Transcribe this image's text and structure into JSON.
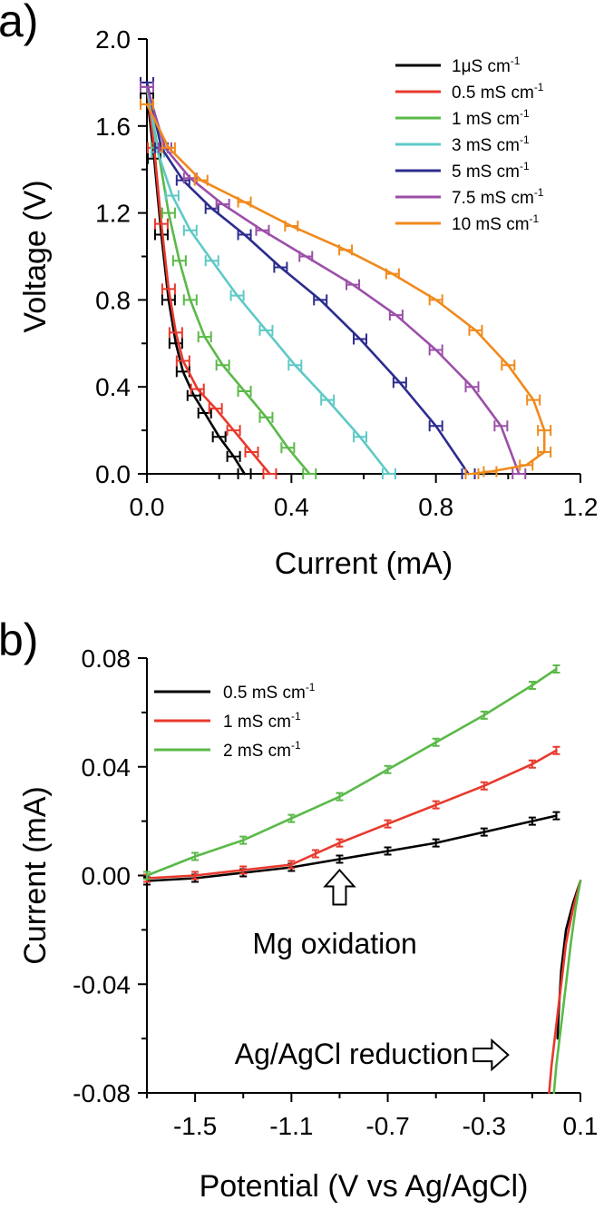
{
  "chart_data": [
    {
      "panel": "a)",
      "type": "line",
      "xlabel": "Current (mA)",
      "ylabel": "Voltage (V)",
      "xlim": [
        0.0,
        1.2
      ],
      "ylim": [
        0.0,
        2.0
      ],
      "xticks": [
        "0.0",
        "0.4",
        "0.8",
        "1.2"
      ],
      "xtick_values": [
        0.0,
        0.4,
        0.8,
        1.2
      ],
      "yticks": [
        "0.0",
        "0.4",
        "0.8",
        "1.2",
        "1.6",
        "2.0"
      ],
      "ytick_values": [
        0.0,
        0.4,
        0.8,
        1.2,
        1.6,
        2.0
      ],
      "legend_position": "top-right",
      "series": [
        {
          "name": "1μS cm",
          "sup": "-1",
          "color": "#000000",
          "x": [
            0.0,
            0.02,
            0.04,
            0.06,
            0.08,
            0.1,
            0.13,
            0.16,
            0.2,
            0.24,
            0.27
          ],
          "y": [
            1.75,
            1.45,
            1.1,
            0.8,
            0.6,
            0.47,
            0.36,
            0.28,
            0.17,
            0.08,
            0.0
          ]
        },
        {
          "name": "0.5 mS cm",
          "sup": "-1",
          "color": "#e8392c",
          "x": [
            0.0,
            0.02,
            0.04,
            0.06,
            0.08,
            0.1,
            0.14,
            0.19,
            0.24,
            0.29,
            0.34
          ],
          "y": [
            1.78,
            1.5,
            1.15,
            0.85,
            0.65,
            0.52,
            0.39,
            0.3,
            0.2,
            0.1,
            0.0
          ]
        },
        {
          "name": "1 mS cm",
          "sup": "-1",
          "color": "#5ab948",
          "x": [
            0.0,
            0.03,
            0.06,
            0.09,
            0.12,
            0.16,
            0.21,
            0.27,
            0.33,
            0.39,
            0.45
          ],
          "y": [
            1.78,
            1.5,
            1.2,
            0.98,
            0.8,
            0.63,
            0.5,
            0.38,
            0.26,
            0.12,
            0.0
          ]
        },
        {
          "name": "3 mS cm",
          "sup": "-1",
          "color": "#5fc9c6",
          "x": [
            0.0,
            0.03,
            0.07,
            0.12,
            0.18,
            0.25,
            0.33,
            0.41,
            0.5,
            0.59,
            0.67
          ],
          "y": [
            1.78,
            1.48,
            1.28,
            1.12,
            0.98,
            0.82,
            0.66,
            0.5,
            0.34,
            0.17,
            0.0
          ]
        },
        {
          "name": "5 mS cm",
          "sup": "-1",
          "color": "#2c2c8e",
          "x": [
            0.0,
            0.04,
            0.1,
            0.18,
            0.27,
            0.37,
            0.48,
            0.59,
            0.7,
            0.8,
            0.89
          ],
          "y": [
            1.8,
            1.5,
            1.35,
            1.22,
            1.1,
            0.95,
            0.8,
            0.62,
            0.42,
            0.22,
            0.0
          ]
        },
        {
          "name": "7.5 mS cm",
          "sup": "-1",
          "color": "#9b4fa8",
          "x": [
            0.0,
            0.05,
            0.12,
            0.21,
            0.32,
            0.44,
            0.57,
            0.69,
            0.8,
            0.9,
            0.98,
            1.03
          ],
          "y": [
            1.78,
            1.5,
            1.36,
            1.24,
            1.12,
            1.0,
            0.87,
            0.73,
            0.57,
            0.4,
            0.22,
            0.0
          ]
        },
        {
          "name": "10 mS cm",
          "sup": "-1",
          "color": "#f08a1c",
          "x": [
            0.0,
            0.06,
            0.15,
            0.27,
            0.4,
            0.55,
            0.68,
            0.8,
            0.91,
            1.0,
            1.07,
            1.1,
            1.1,
            1.05,
            0.95,
            0.9
          ],
          "y": [
            1.7,
            1.5,
            1.35,
            1.25,
            1.14,
            1.03,
            0.92,
            0.8,
            0.66,
            0.5,
            0.34,
            0.2,
            0.1,
            0.04,
            0.01,
            0.0
          ]
        }
      ]
    },
    {
      "panel": "b)",
      "type": "line",
      "xlabel": "Potential (V vs Ag/AgCl)",
      "ylabel": "Current (mA)",
      "xlim": [
        -1.7,
        0.1
      ],
      "ylim": [
        -0.08,
        0.08
      ],
      "xticks": [
        "-1.5",
        "-1.1",
        "-0.7",
        "-0.3",
        "0.1"
      ],
      "xtick_values": [
        -1.5,
        -1.1,
        -0.7,
        -0.3,
        0.1
      ],
      "yticks": [
        "-0.08",
        "-0.04",
        "0.00",
        "0.04",
        "0.08"
      ],
      "ytick_values": [
        -0.08,
        -0.04,
        0.0,
        0.04,
        0.08
      ],
      "legend_position": "top-left",
      "annotations": [
        {
          "text": "Mg oxidation",
          "x": -0.92,
          "y": -0.012,
          "arrow": "up",
          "arrow_x": -0.9,
          "arrow_y": 0.002
        },
        {
          "text": "Ag/AgCl reduction",
          "x": -0.85,
          "y": -0.066,
          "arrow": "right",
          "arrow_x": -0.2,
          "arrow_y": -0.066
        }
      ],
      "series": [
        {
          "name": "0.5 mS cm",
          "sup": "-1",
          "color": "#000000",
          "x": [
            -1.7,
            -1.5,
            -1.3,
            -1.1,
            -0.9,
            -0.7,
            -0.5,
            -0.3,
            -0.1,
            0.0
          ],
          "y": [
            -0.002,
            -0.001,
            0.001,
            0.003,
            0.006,
            0.009,
            0.012,
            0.016,
            0.02,
            0.022
          ]
        },
        {
          "name": "1 mS cm",
          "sup": "-1",
          "color": "#e8392c",
          "x": [
            -1.7,
            -1.5,
            -1.3,
            -1.1,
            -1.0,
            -0.9,
            -0.7,
            -0.5,
            -0.3,
            -0.1,
            0.0
          ],
          "y": [
            -0.001,
            0.0,
            0.002,
            0.004,
            0.008,
            0.012,
            0.019,
            0.026,
            0.033,
            0.041,
            0.046
          ]
        },
        {
          "name": "2 mS cm",
          "sup": "-1",
          "color": "#5ab948",
          "x": [
            -1.7,
            -1.5,
            -1.3,
            -1.1,
            -0.9,
            -0.7,
            -0.5,
            -0.3,
            -0.1,
            0.0
          ],
          "y": [
            0.0,
            0.007,
            0.013,
            0.021,
            0.029,
            0.039,
            0.049,
            0.059,
            0.07,
            0.076
          ]
        }
      ],
      "reduction_series": [
        {
          "name": "0.5 mS cm",
          "color": "#000000",
          "x": [
            0.1,
            0.07,
            0.04,
            0.02,
            0.01,
            0.005
          ],
          "y": [
            -0.002,
            -0.01,
            -0.02,
            -0.035,
            -0.05,
            -0.06
          ]
        },
        {
          "name": "1 mS cm",
          "color": "#e8392c",
          "x": [
            0.1,
            0.07,
            0.04,
            0.02,
            0.0,
            -0.02,
            -0.03
          ],
          "y": [
            -0.002,
            -0.012,
            -0.025,
            -0.04,
            -0.055,
            -0.07,
            -0.08
          ]
        },
        {
          "name": "2 mS cm",
          "color": "#5ab948",
          "x": [
            0.1,
            0.08,
            0.06,
            0.04,
            0.02,
            0.0,
            -0.01
          ],
          "y": [
            -0.002,
            -0.012,
            -0.025,
            -0.04,
            -0.055,
            -0.07,
            -0.08
          ]
        }
      ]
    }
  ]
}
